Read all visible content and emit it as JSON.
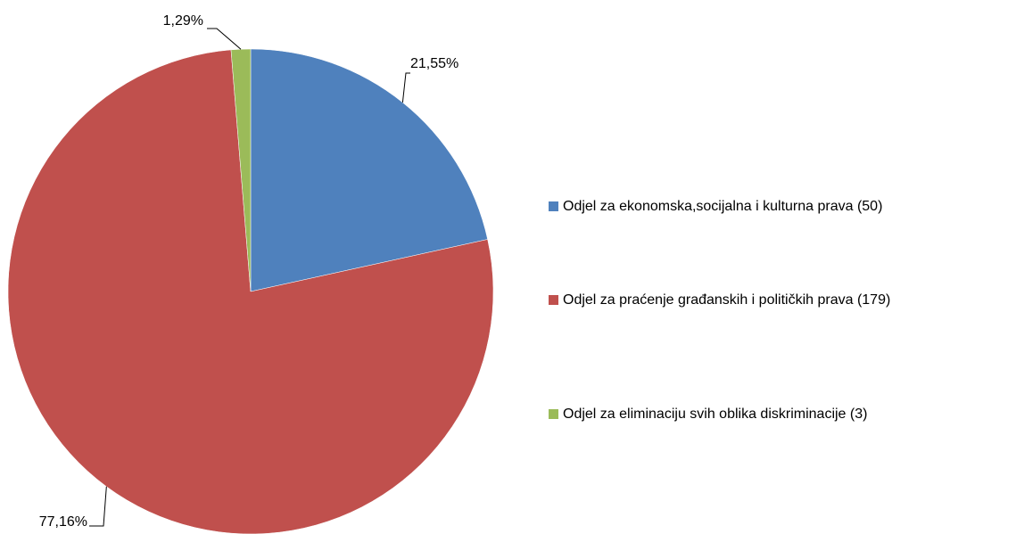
{
  "chart_data": {
    "type": "pie",
    "categories": [
      "Odjel za ekonomska,socijalna i kulturna prava (50)",
      "Odjel za praćenje građanskih i političkih prava (179)",
      "Odjel za eliminaciju svih oblika diskriminacije (3)"
    ],
    "values": [
      21.55,
      77.16,
      1.29
    ],
    "value_labels": [
      "21,55%",
      "77,16%",
      "1,29%"
    ],
    "colors": [
      "#4f81bd",
      "#c0504d",
      "#9bbb59"
    ],
    "legend": "right"
  }
}
